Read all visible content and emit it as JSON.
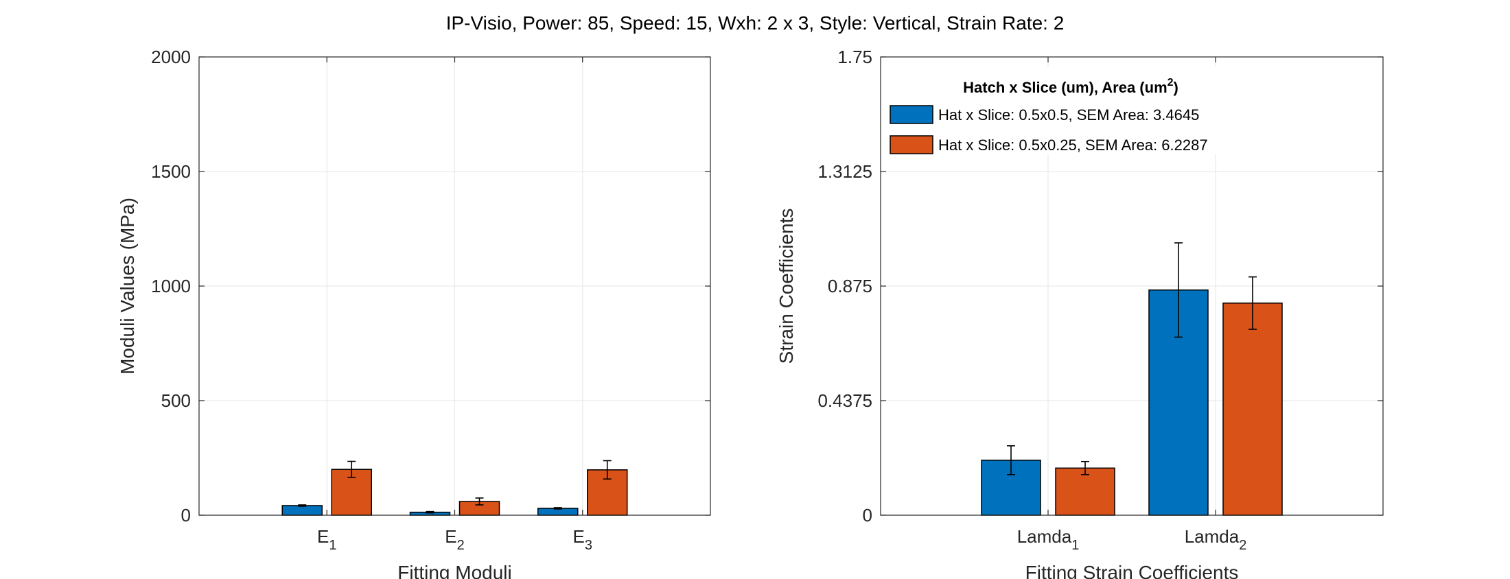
{
  "figure_title": "IP-Visio, Power: 85, Speed: 15, Wxh: 2 x 3, Style: Vertical, Strain Rate: 2",
  "colors": {
    "series1": "#0072BD",
    "series2": "#D95319",
    "grid": "#e6e6e6",
    "axis": "#262626"
  },
  "legend": {
    "title_main": "Hatch x Slice (um), Area (um",
    "title_sup": "2",
    "title_end": ")",
    "entries": [
      "Hat x Slice: 0.5x0.5, SEM Area: 3.4645",
      "Hat x Slice: 0.5x0.25, SEM Area: 6.2287"
    ]
  },
  "chart_data": [
    {
      "type": "bar",
      "title": "",
      "xlabel": "Fitting Moduli",
      "ylabel": "Moduli Values (MPa)",
      "ylim": [
        0,
        2000
      ],
      "yticks": [
        "0",
        "500",
        "1000",
        "1500",
        "2000"
      ],
      "categories": [
        {
          "base": "E",
          "sub": "1"
        },
        {
          "base": "E",
          "sub": "2"
        },
        {
          "base": "E",
          "sub": "3"
        }
      ],
      "grid": true,
      "series": [
        {
          "name": "Hat x Slice: 0.5x0.5, SEM Area: 3.4645",
          "values": [
            42,
            13,
            30
          ],
          "errors": [
            3,
            3,
            3
          ]
        },
        {
          "name": "Hat x Slice: 0.5x0.25, SEM Area: 6.2287",
          "values": [
            200,
            60,
            198
          ],
          "errors": [
            35,
            15,
            40
          ]
        }
      ]
    },
    {
      "type": "bar",
      "title": "",
      "xlabel": "Fitting Strain Coefficients",
      "ylabel": "Strain Coefficients",
      "ylim": [
        0,
        1.75
      ],
      "yticks": [
        "0",
        "0.4375",
        "0.875",
        "1.3125",
        "1.75"
      ],
      "categories": [
        {
          "base": "Lamda",
          "sub": "1"
        },
        {
          "base": "Lamda",
          "sub": "2"
        }
      ],
      "grid": true,
      "legend_position": "top-left",
      "series": [
        {
          "name": "Hat x Slice: 0.5x0.5, SEM Area: 3.4645",
          "values": [
            0.21,
            0.86
          ],
          "errors": [
            0.055,
            0.18
          ]
        },
        {
          "name": "Hat x Slice: 0.5x0.25, SEM Area: 6.2287",
          "values": [
            0.18,
            0.81
          ],
          "errors": [
            0.025,
            0.1
          ]
        }
      ]
    }
  ]
}
